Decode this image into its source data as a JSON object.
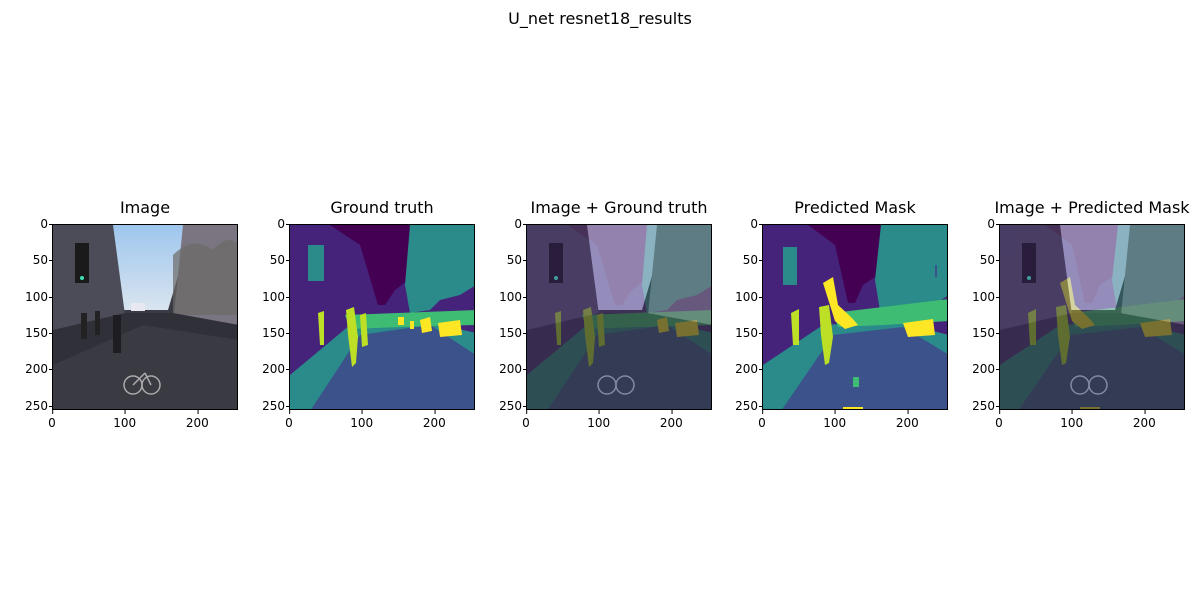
{
  "figure": {
    "title": "U_net resnet18_results"
  },
  "panels": [
    {
      "title": "Image"
    },
    {
      "title": "Ground truth"
    },
    {
      "title": "Image + Ground truth"
    },
    {
      "title": "Predicted Mask"
    },
    {
      "title": "Image + Predicted Mask"
    }
  ],
  "axes": {
    "xticks": [
      "0",
      "100",
      "200"
    ],
    "yticks": [
      "0",
      "50",
      "100",
      "150",
      "200",
      "250"
    ]
  },
  "colors": {
    "mask_dark_purple": "#440154",
    "mask_purple": "#46237a",
    "mask_blue": "#3b528b",
    "mask_teal": "#2a8b8a",
    "mask_green": "#3fbc73",
    "mask_lime": "#bddf26",
    "mask_yellow": "#fde725"
  }
}
